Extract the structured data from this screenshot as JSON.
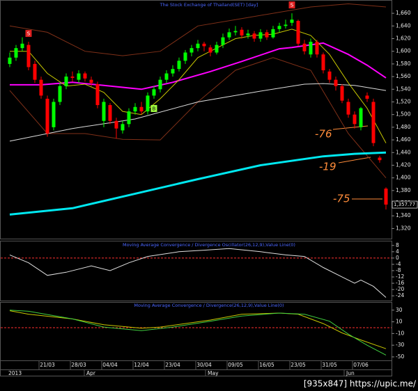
{
  "chart_data": [
    {
      "type": "candlestick",
      "title": "The Stock Exchange of Thailand(SET) [day]",
      "categories": [
        null,
        null,
        null,
        null,
        null,
        null,
        "21/03",
        null,
        null,
        null,
        null,
        "28/03",
        null,
        null,
        null,
        null,
        "04/04",
        null,
        null,
        null,
        null,
        "12/04",
        null,
        null,
        null,
        null,
        "23/04",
        null,
        null,
        null,
        null,
        "30/04",
        null,
        null,
        null,
        null,
        "09/05",
        null,
        null,
        null,
        null,
        "16/05",
        null,
        null,
        null,
        null,
        "23/05",
        null,
        null,
        null,
        null,
        "31/05",
        null,
        null,
        null,
        null,
        "07/06",
        null,
        null,
        null,
        null
      ],
      "open": [
        1580,
        1590,
        1605,
        1610,
        1580,
        1555,
        1525,
        1480,
        1520,
        1545,
        1560,
        1555,
        1565,
        1555,
        1548,
        1490,
        1515,
        1490,
        1475,
        1485,
        1505,
        1512,
        1505,
        1530,
        1540,
        1555,
        1565,
        1572,
        1585,
        1598,
        1605,
        1612,
        1606,
        1598,
        1610,
        1622,
        1630,
        1634,
        1625,
        1628,
        1620,
        1630,
        1622,
        1635,
        1640,
        1645,
        1648,
        1612,
        1595,
        1615,
        1595,
        1568,
        1555,
        1545,
        1520,
        1500,
        1480,
        1530,
        1520,
        1432,
        1383
      ],
      "high": [
        1598,
        1610,
        1622,
        1615,
        1585,
        1560,
        1530,
        1525,
        1550,
        1565,
        1568,
        1570,
        1568,
        1560,
        1552,
        1525,
        1518,
        1495,
        1490,
        1510,
        1518,
        1520,
        1535,
        1545,
        1560,
        1570,
        1578,
        1590,
        1602,
        1610,
        1618,
        1615,
        1610,
        1615,
        1628,
        1636,
        1640,
        1638,
        1634,
        1632,
        1635,
        1634,
        1640,
        1645,
        1650,
        1660,
        1650,
        1618,
        1620,
        1618,
        1598,
        1572,
        1560,
        1548,
        1525,
        1505,
        1512,
        1535,
        1525,
        1435,
        1385
      ],
      "low": [
        1575,
        1585,
        1600,
        1570,
        1550,
        1525,
        1465,
        1475,
        1515,
        1540,
        1552,
        1550,
        1552,
        1545,
        1510,
        1480,
        1485,
        1462,
        1470,
        1480,
        1500,
        1500,
        1500,
        1525,
        1535,
        1550,
        1560,
        1568,
        1580,
        1592,
        1600,
        1600,
        1592,
        1595,
        1605,
        1618,
        1625,
        1620,
        1620,
        1615,
        1615,
        1618,
        1620,
        1630,
        1636,
        1640,
        1608,
        1595,
        1590,
        1590,
        1565,
        1550,
        1538,
        1518,
        1495,
        1478,
        1475,
        1520,
        1450,
        1424,
        1350
      ],
      "close": [
        1590,
        1605,
        1612,
        1575,
        1555,
        1530,
        1470,
        1520,
        1545,
        1560,
        1558,
        1565,
        1557,
        1550,
        1515,
        1520,
        1490,
        1478,
        1485,
        1505,
        1512,
        1505,
        1530,
        1540,
        1555,
        1565,
        1572,
        1585,
        1598,
        1605,
        1612,
        1608,
        1598,
        1610,
        1622,
        1630,
        1632,
        1625,
        1628,
        1620,
        1630,
        1622,
        1635,
        1640,
        1642,
        1650,
        1612,
        1600,
        1615,
        1595,
        1570,
        1555,
        1545,
        1522,
        1500,
        1485,
        1510,
        1525,
        1455,
        1428,
        1357.77
      ],
      "up_color": "#00ff00",
      "down_color": "#ff0000",
      "series": [
        {
          "color": "#803018",
          "x": [
            0,
            6,
            12,
            18,
            24,
            30,
            36,
            42,
            48,
            54,
            60
          ],
          "values": [
            1640,
            1630,
            1600,
            1593,
            1600,
            1640,
            1650,
            1660,
            1670,
            1675,
            1670
          ]
        },
        {
          "color": "#803018",
          "x": [
            0,
            6,
            12,
            18,
            24,
            30,
            36,
            42,
            48,
            54,
            60
          ],
          "values": [
            1538,
            1470,
            1470,
            1461,
            1460,
            1520,
            1570,
            1590,
            1570,
            1470,
            1400
          ]
        },
        {
          "color": "#dddddd",
          "x": [
            0,
            10,
            20,
            30,
            40,
            47,
            50,
            55,
            60
          ],
          "values": [
            1458,
            1478,
            1493,
            1520,
            1537,
            1548,
            1549,
            1546,
            1538
          ]
        },
        {
          "color": "#ff00ff",
          "x": [
            0,
            5,
            10,
            15,
            21,
            26,
            32,
            37,
            43,
            45,
            50,
            54,
            57,
            60
          ],
          "values": [
            1547,
            1547,
            1551,
            1546,
            1540,
            1551,
            1568,
            1584,
            1604,
            1606,
            1613,
            1595,
            1578,
            1558
          ]
        },
        {
          "color": "#c8c800",
          "x": [
            0,
            3,
            6,
            9,
            12,
            15,
            18,
            21,
            24,
            27,
            30,
            33,
            36,
            39,
            42,
            45,
            48,
            51,
            54,
            57,
            60
          ],
          "values": [
            1600,
            1600,
            1565,
            1545,
            1548,
            1535,
            1505,
            1500,
            1525,
            1555,
            1590,
            1605,
            1620,
            1625,
            1627,
            1635,
            1625,
            1595,
            1550,
            1510,
            1455
          ]
        },
        {
          "color": "#00e8f0",
          "x": [
            0,
            10,
            20,
            30,
            40,
            50,
            55,
            60
          ],
          "values": [
            1342,
            1352,
            1375,
            1398,
            1420,
            1434,
            1438,
            1440
          ]
        }
      ],
      "signals": [
        {
          "label": "S",
          "x": 3,
          "position": "above"
        },
        {
          "label": "B",
          "x": 23,
          "position": "below"
        },
        {
          "label": "S",
          "x": 45,
          "position": "above"
        }
      ],
      "annotations": [
        "-76",
        "-19",
        "-75"
      ],
      "price_label": "1,357.77",
      "months": [
        "2013",
        "Apr",
        "May",
        "Jun"
      ],
      "ylim": [
        1304,
        1681
      ],
      "yticks": [
        {
          "value": 1660,
          "label": "1,660"
        },
        {
          "value": 1640,
          "label": "1,640"
        },
        {
          "value": 1620,
          "label": "1,620"
        },
        {
          "value": 1600,
          "label": "1,600"
        },
        {
          "value": 1580,
          "label": "1,580"
        },
        {
          "value": 1560,
          "label": "1,560"
        },
        {
          "value": 1540,
          "label": "1,540"
        },
        {
          "value": 1520,
          "label": "1,520"
        },
        {
          "value": 1500,
          "label": "1,500"
        },
        {
          "value": 1480,
          "label": "1,480"
        },
        {
          "value": 1460,
          "label": "1,460"
        },
        {
          "value": 1440,
          "label": "1,440"
        },
        {
          "value": 1420,
          "label": "1,420"
        },
        {
          "value": 1400,
          "label": "1,400"
        },
        {
          "value": 1380,
          "label": "1,380"
        },
        {
          "value": 1360,
          "label": "1,360"
        },
        {
          "value": 1340,
          "label": "1,340"
        },
        {
          "value": 1320,
          "label": "1,320"
        }
      ]
    },
    {
      "type": "line",
      "title": "Moving Average Convergence / Divergence Oscillator(26,12,9),Value Line(0)",
      "value_line": 0,
      "value_line_color": "#ff3030",
      "series": [
        {
          "color": "#e0e0e0",
          "x": [
            0,
            3,
            6,
            9,
            13,
            16,
            19,
            22,
            27,
            31,
            35,
            40,
            44,
            47,
            50,
            53,
            55,
            56,
            58,
            60
          ],
          "values": [
            2,
            -3,
            -11,
            -9,
            -5,
            -8,
            -3,
            1,
            4,
            5,
            6,
            4,
            2,
            1,
            -6,
            -12,
            -16,
            -14,
            -18,
            -25
          ]
        }
      ],
      "ylim": [
        -27,
        11
      ],
      "yticks": [
        8,
        4,
        0,
        -4,
        -8,
        -12,
        -16,
        -20,
        -24
      ]
    },
    {
      "type": "line",
      "title": "Moving Average Convergence / Divergence(26,12,9),Value Line(0)",
      "value_line": 0,
      "value_line_color": "#ff3030",
      "series": [
        {
          "color": "#c8c800",
          "x": [
            0,
            3,
            10,
            15,
            21,
            24,
            32,
            37,
            43,
            46,
            50,
            53,
            56,
            60
          ],
          "values": [
            29,
            23,
            15,
            5,
            -1,
            1,
            13,
            23,
            25,
            23,
            7,
            -9,
            -21,
            -36
          ]
        },
        {
          "color": "#40d040",
          "x": [
            0,
            3,
            10,
            15,
            21,
            26,
            32,
            37,
            43,
            47,
            51,
            54,
            57,
            60
          ],
          "values": [
            30,
            28,
            15,
            1,
            -5,
            1,
            11,
            20,
            25,
            23,
            11,
            -11,
            -30,
            -47
          ]
        }
      ],
      "ylim": [
        -56,
        44
      ],
      "yticks": [
        30,
        10,
        -10,
        -30,
        -50
      ]
    }
  ],
  "watermark": "[935x847] https://upic.me/"
}
